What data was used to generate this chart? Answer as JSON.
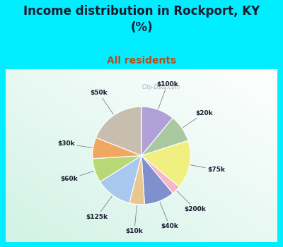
{
  "title": "Income distribution in Rockport, KY\n(%)",
  "subtitle": "All residents",
  "title_color": "#1a1a2e",
  "subtitle_color": "#b05020",
  "fig_bg": "#00eeff",
  "chart_bg": "#e0f0e8",
  "watermark": "City-Data.com",
  "slices": [
    {
      "label": "$100k",
      "value": 11,
      "color": "#b0a0d8"
    },
    {
      "label": "$20k",
      "value": 9,
      "color": "#a8c8a0"
    },
    {
      "label": "$75k",
      "value": 16,
      "color": "#f0f080"
    },
    {
      "label": "$200k",
      "value": 3,
      "color": "#f4b8c8"
    },
    {
      "label": "$40k",
      "value": 10,
      "color": "#8090cc"
    },
    {
      "label": "$10k",
      "value": 5,
      "color": "#e8c890"
    },
    {
      "label": "$125k",
      "value": 12,
      "color": "#a8c8f0"
    },
    {
      "label": "$60k",
      "value": 8,
      "color": "#b8d878"
    },
    {
      "label": "$30k",
      "value": 7,
      "color": "#f0a860"
    },
    {
      "label": "$50k",
      "value": 19,
      "color": "#c8beb0"
    }
  ],
  "title_fontsize": 12,
  "subtitle_fontsize": 10
}
